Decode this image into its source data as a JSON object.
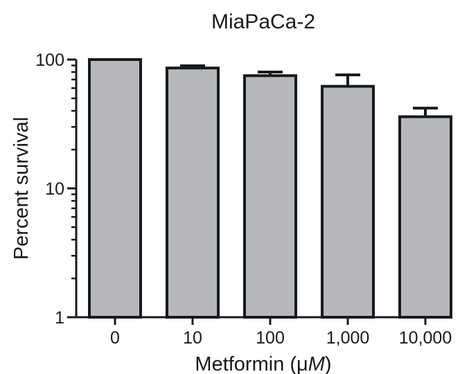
{
  "chart_data": {
    "type": "bar",
    "title": "MiaPaCa-2",
    "xlabel": "Metformin (μM)",
    "xlabel_parts": {
      "prefix": "Metformin (μ",
      "unit": "M",
      "suffix": ")"
    },
    "ylabel": "Percent survival",
    "yscale": "log",
    "ylim": [
      1,
      100
    ],
    "yticks": [
      {
        "value": 1,
        "label": "1"
      },
      {
        "value": 10,
        "label": "10"
      },
      {
        "value": 100,
        "label": "100"
      }
    ],
    "categories": [
      "0",
      "10",
      "100",
      "1,000",
      "10,000"
    ],
    "values": [
      100,
      86,
      75,
      62,
      36
    ],
    "errors": [
      0,
      3.5,
      5,
      14,
      6
    ],
    "grid": false,
    "legend": "none",
    "bar_color": "#b6b8bc",
    "edge_color": "#1a1a1a"
  }
}
